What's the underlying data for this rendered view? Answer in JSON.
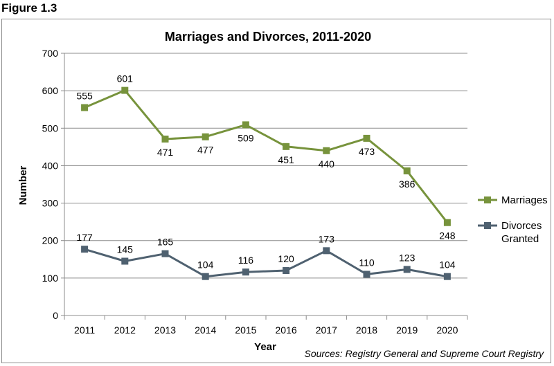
{
  "figure_label": "Figure 1.3",
  "source_note": "Sources:  Registry General and Supreme Court Registry",
  "chart_data": {
    "type": "line",
    "title": "Marriages and Divorces, 2011-2020",
    "xlabel": "Year",
    "ylabel": "Number",
    "categories": [
      "2011",
      "2012",
      "2013",
      "2014",
      "2015",
      "2016",
      "2017",
      "2018",
      "2019",
      "2020"
    ],
    "ylim": [
      0,
      700
    ],
    "yticks": [
      0,
      100,
      200,
      300,
      400,
      500,
      600,
      700
    ],
    "grid": true,
    "legend_position": "right",
    "series": [
      {
        "name": "Marriages",
        "color": "#77933c",
        "values": [
          555,
          601,
          471,
          477,
          509,
          451,
          440,
          473,
          386,
          248
        ],
        "label_pos": [
          "above",
          "above",
          "below",
          "below",
          "below",
          "below",
          "below",
          "below",
          "below",
          "below"
        ]
      },
      {
        "name": "Divorces Granted",
        "legend_lines": [
          "Divorces",
          "Granted"
        ],
        "color": "#4f6170",
        "values": [
          177,
          145,
          165,
          104,
          116,
          120,
          173,
          110,
          123,
          104
        ],
        "label_pos": [
          "above",
          "above",
          "above",
          "above",
          "above",
          "above",
          "above",
          "above",
          "above",
          "above"
        ]
      }
    ]
  }
}
